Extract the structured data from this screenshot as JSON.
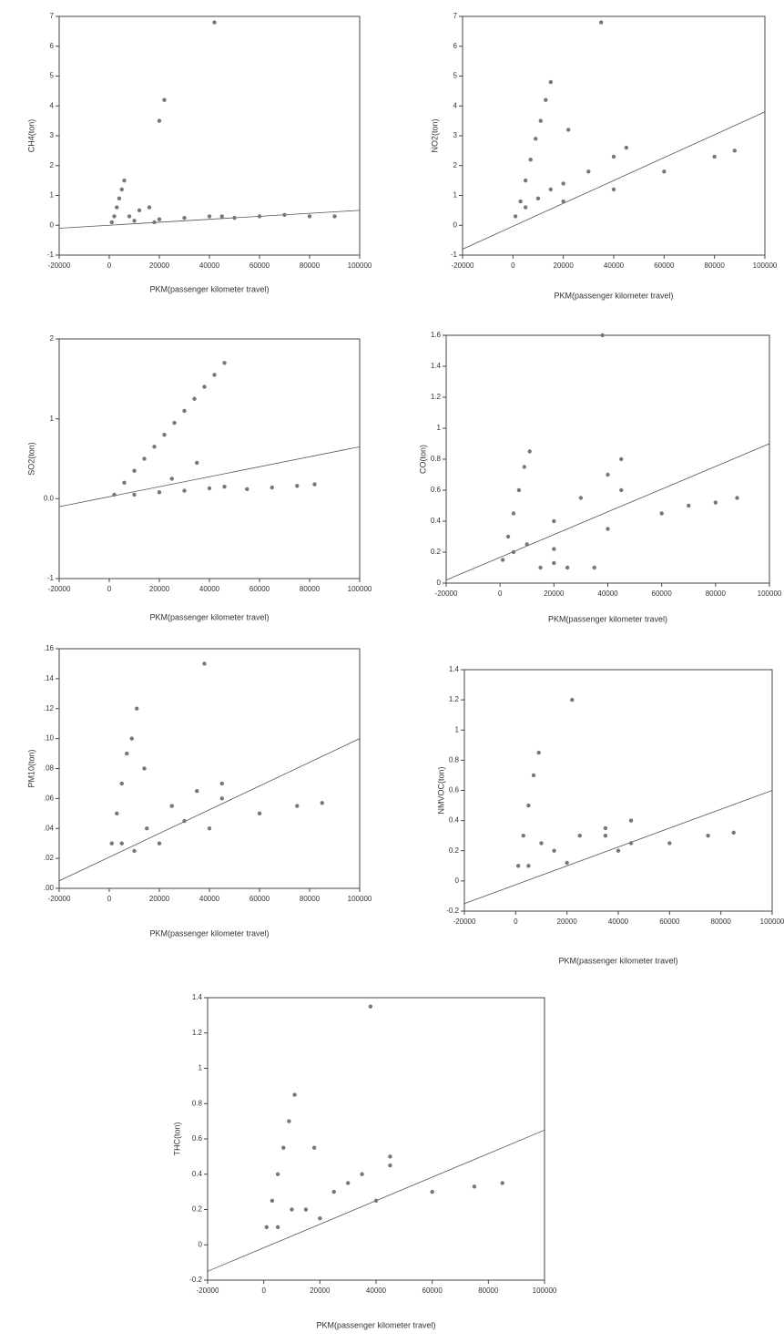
{
  "chart_data": [
    {
      "type": "scatter",
      "y_label": "CH4(ton)",
      "x_label": "PKM(passenger kilometer travel)",
      "xlim": [
        -20000,
        100000
      ],
      "xticks": [
        -20000,
        0,
        20000,
        40000,
        60000,
        80000,
        100000
      ],
      "ylim": [
        -1,
        7
      ],
      "yticks": [
        -1,
        0,
        1,
        2,
        3,
        4,
        5,
        6,
        7
      ],
      "color": "#777777",
      "x": [
        1000,
        2000,
        3000,
        4000,
        5000,
        8000,
        12000,
        16000,
        10000,
        20000,
        30000,
        40000,
        45000,
        50000,
        60000,
        70000,
        80000,
        90000,
        20000,
        22000,
        42000,
        6000,
        18000
      ],
      "y": [
        0.1,
        0.3,
        0.6,
        0.9,
        1.2,
        0.3,
        0.5,
        0.6,
        0.15,
        0.2,
        0.25,
        0.3,
        0.3,
        0.25,
        0.3,
        0.35,
        0.3,
        0.3,
        3.5,
        4.2,
        6.8,
        1.5,
        0.1
      ],
      "fit": {
        "x": [
          -20000,
          100000
        ],
        "y": [
          -0.1,
          0.5
        ]
      }
    },
    {
      "type": "scatter",
      "y_label": "NO2(ton)",
      "x_label": "PKM(passenger kilometer travel)",
      "xlim": [
        -20000,
        100000
      ],
      "xticks": [
        -20000,
        0,
        20000,
        40000,
        60000,
        80000,
        100000
      ],
      "ylim": [
        -1,
        7
      ],
      "yticks": [
        -1,
        0,
        1,
        2,
        3,
        4,
        5,
        6,
        7
      ],
      "color": "#777777",
      "x": [
        1000,
        3000,
        5000,
        7000,
        9000,
        11000,
        13000,
        15000,
        5000,
        10000,
        20000,
        30000,
        40000,
        45000,
        20000,
        40000,
        60000,
        80000,
        88000,
        35000,
        22000,
        15000
      ],
      "y": [
        0.3,
        0.8,
        1.5,
        2.2,
        2.9,
        3.5,
        4.2,
        4.8,
        0.6,
        0.9,
        1.4,
        1.8,
        2.3,
        2.6,
        0.8,
        1.2,
        1.8,
        2.3,
        2.5,
        6.8,
        3.2,
        1.2
      ],
      "fit": {
        "x": [
          -20000,
          100000
        ],
        "y": [
          -0.8,
          3.8
        ]
      }
    },
    {
      "type": "scatter",
      "y_label": "SO2(ton)",
      "x_label": "PKM(passenger kilometer travel)",
      "xlim": [
        -20000,
        100000
      ],
      "xticks": [
        -20000,
        0,
        20000,
        40000,
        60000,
        80000,
        100000
      ],
      "ylim": [
        -1,
        2
      ],
      "yticks": [
        -1,
        {
          "value": 0,
          "label": "0.0"
        },
        1,
        2
      ],
      "color": "#777777",
      "x": [
        2000,
        6000,
        10000,
        14000,
        18000,
        22000,
        26000,
        30000,
        34000,
        38000,
        42000,
        46000,
        10000,
        20000,
        30000,
        40000,
        46000,
        55000,
        65000,
        75000,
        82000,
        35000,
        25000
      ],
      "y": [
        0.05,
        0.2,
        0.35,
        0.5,
        0.65,
        0.8,
        0.95,
        1.1,
        1.25,
        1.4,
        1.55,
        1.7,
        0.05,
        0.08,
        0.1,
        0.13,
        0.15,
        0.12,
        0.14,
        0.16,
        0.18,
        0.45,
        0.25
      ],
      "fit": {
        "x": [
          -20000,
          100000
        ],
        "y": [
          -0.1,
          0.65
        ]
      }
    },
    {
      "type": "scatter",
      "y_label": "CO(ton)",
      "x_label": "PKM(passenger kilometer travel)",
      "xlim": [
        -20000,
        100000
      ],
      "xticks": [
        -20000,
        0,
        20000,
        40000,
        60000,
        80000,
        100000
      ],
      "ylim": [
        0,
        1.6
      ],
      "yticks": [
        0,
        0.2,
        0.4,
        0.6,
        0.8,
        1,
        1.2,
        1.4,
        1.6
      ],
      "color": "#777777",
      "x": [
        1000,
        3000,
        5000,
        7000,
        9000,
        11000,
        5000,
        10000,
        20000,
        30000,
        40000,
        45000,
        20000,
        40000,
        60000,
        70000,
        80000,
        88000,
        15000,
        25000,
        35000,
        20000,
        45000,
        38000
      ],
      "y": [
        0.15,
        0.3,
        0.45,
        0.6,
        0.75,
        0.85,
        0.2,
        0.25,
        0.4,
        0.55,
        0.7,
        0.8,
        0.22,
        0.35,
        0.45,
        0.5,
        0.52,
        0.55,
        0.1,
        0.1,
        0.1,
        0.13,
        0.6,
        1.6
      ],
      "fit": {
        "x": [
          -20000,
          100000
        ],
        "y": [
          0.02,
          0.9
        ]
      }
    },
    {
      "type": "scatter",
      "y_label": "PM10(ton)",
      "x_label": "PKM(passenger kilometer travel)",
      "xlim": [
        -20000,
        100000
      ],
      "xticks": [
        -20000,
        0,
        20000,
        40000,
        60000,
        80000,
        100000
      ],
      "ylim": [
        0,
        0.16
      ],
      "yticks": [
        {
          "value": 0,
          "label": ".00"
        },
        {
          "value": 0.02,
          "label": ".02"
        },
        {
          "value": 0.04,
          "label": ".04"
        },
        {
          "value": 0.06,
          "label": ".06"
        },
        {
          "value": 0.08,
          "label": ".08"
        },
        {
          "value": 0.1,
          "label": ".10"
        },
        {
          "value": 0.12,
          "label": ".12"
        },
        {
          "value": 0.14,
          "label": ".14"
        },
        {
          "value": 0.16,
          "label": ".16"
        }
      ],
      "color": "#777777",
      "x": [
        1000,
        3000,
        5000,
        7000,
        9000,
        11000,
        5000,
        15000,
        25000,
        35000,
        45000,
        20000,
        40000,
        60000,
        75000,
        85000,
        10000,
        30000,
        45000,
        38000,
        14000
      ],
      "y": [
        0.03,
        0.05,
        0.07,
        0.09,
        0.1,
        0.12,
        0.03,
        0.04,
        0.055,
        0.065,
        0.07,
        0.03,
        0.04,
        0.05,
        0.055,
        0.057,
        0.025,
        0.045,
        0.06,
        0.15,
        0.08
      ],
      "fit": {
        "x": [
          -20000,
          100000
        ],
        "y": [
          0.005,
          0.1
        ]
      }
    },
    {
      "type": "scatter",
      "y_label": "NMVOC(ton)",
      "x_label": "PKM(passenger kilometer travel)",
      "xlim": [
        -20000,
        100000
      ],
      "xticks": [
        -20000,
        0,
        20000,
        40000,
        60000,
        80000,
        100000
      ],
      "ylim": [
        -0.2,
        1.4
      ],
      "yticks": [
        -0.2,
        0,
        0.2,
        0.4,
        0.6,
        0.8,
        1,
        1.2,
        1.4
      ],
      "color": "#777777",
      "x": [
        1000,
        3000,
        5000,
        7000,
        9000,
        5000,
        15000,
        25000,
        35000,
        45000,
        20000,
        40000,
        60000,
        75000,
        85000,
        22000,
        10000,
        45000,
        35000
      ],
      "y": [
        0.1,
        0.3,
        0.5,
        0.7,
        0.85,
        0.1,
        0.2,
        0.3,
        0.35,
        0.4,
        0.12,
        0.2,
        0.25,
        0.3,
        0.32,
        1.2,
        0.25,
        0.25,
        0.3
      ],
      "fit": {
        "x": [
          -20000,
          100000
        ],
        "y": [
          -0.15,
          0.6
        ]
      }
    },
    {
      "type": "scatter",
      "y_label": "THC(ton)",
      "x_label": "PKM(passenger kilometer travel)",
      "xlim": [
        -20000,
        100000
      ],
      "xticks": [
        -20000,
        0,
        20000,
        40000,
        60000,
        80000,
        100000
      ],
      "ylim": [
        -0.2,
        1.4
      ],
      "yticks": [
        -0.2,
        0,
        0.2,
        0.4,
        0.6,
        0.8,
        1,
        1.2,
        1.4
      ],
      "color": "#777777",
      "x": [
        1000,
        3000,
        5000,
        7000,
        9000,
        11000,
        5000,
        15000,
        25000,
        35000,
        45000,
        20000,
        40000,
        60000,
        75000,
        85000,
        10000,
        30000,
        45000,
        38000,
        18000
      ],
      "y": [
        0.1,
        0.25,
        0.4,
        0.55,
        0.7,
        0.85,
        0.1,
        0.2,
        0.3,
        0.4,
        0.5,
        0.15,
        0.25,
        0.3,
        0.33,
        0.35,
        0.2,
        0.35,
        0.45,
        1.35,
        0.55
      ],
      "fit": {
        "x": [
          -20000,
          100000
        ],
        "y": [
          -0.15,
          0.65
        ]
      }
    }
  ]
}
